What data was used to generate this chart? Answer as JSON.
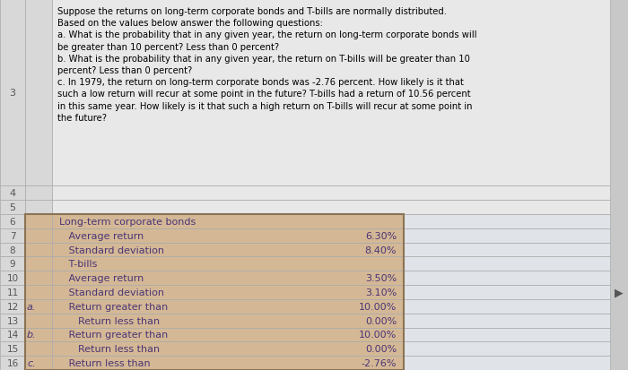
{
  "title_text": "Suppose the returns on long-term corporate bonds and T-bills are normally distributed.\nBased on the values below answer the following questions:\na. What is the probability that in any given year, the return on long-term corporate bonds will\nbe greater than 10 percent? Less than 0 percent?\nb. What is the probability that in any given year, the return on T-bills will be greater than 10\npercent? Less than 0 percent?\nc. In 1979, the return on long-term corporate bonds was -2.76 percent. How likely is it that\nsuch a low return will recur at some point in the future? T-bills had a return of 10.56 percent\nin this same year. How likely is it that such a high return on T-bills will recur at some point in\nthe future?",
  "table_rows": [
    {
      "label": "",
      "desc": "Long-term corporate bonds",
      "value": ""
    },
    {
      "label": "",
      "desc": "   Average return",
      "value": "6.30%"
    },
    {
      "label": "",
      "desc": "   Standard deviation",
      "value": "8.40%"
    },
    {
      "label": "",
      "desc": "   T-bills",
      "value": ""
    },
    {
      "label": "",
      "desc": "   Average return",
      "value": "3.50%"
    },
    {
      "label": "",
      "desc": "   Standard deviation",
      "value": "3.10%"
    },
    {
      "label": "a.",
      "desc": "   Return greater than",
      "value": "10.00%"
    },
    {
      "label": "",
      "desc": "      Return less than",
      "value": "0.00%"
    },
    {
      "label": "b.",
      "desc": "   Return greater than",
      "value": "10.00%"
    },
    {
      "label": "",
      "desc": "      Return less than",
      "value": "0.00%"
    },
    {
      "label": "c.",
      "desc": "   Return less than",
      "value": "-2.76%"
    }
  ],
  "row_labels": [
    "3",
    "4",
    "5",
    "6",
    "7",
    "8",
    "9",
    "10",
    "11",
    "12",
    "13",
    "14",
    "15",
    "16"
  ],
  "bg_fig": "#cccccc",
  "bg_header_cell": "#e8e8e8",
  "bg_table": "#d4b896",
  "bg_grid": "#e0e4e8",
  "bg_rownum": "#d8d8d8",
  "border_color": "#aaaaaa",
  "text_table": "#4a3575",
  "text_header": "#000000",
  "text_rownum": "#555555",
  "grid_line_color": "#c0c8d0",
  "table_border": "#8B7355"
}
